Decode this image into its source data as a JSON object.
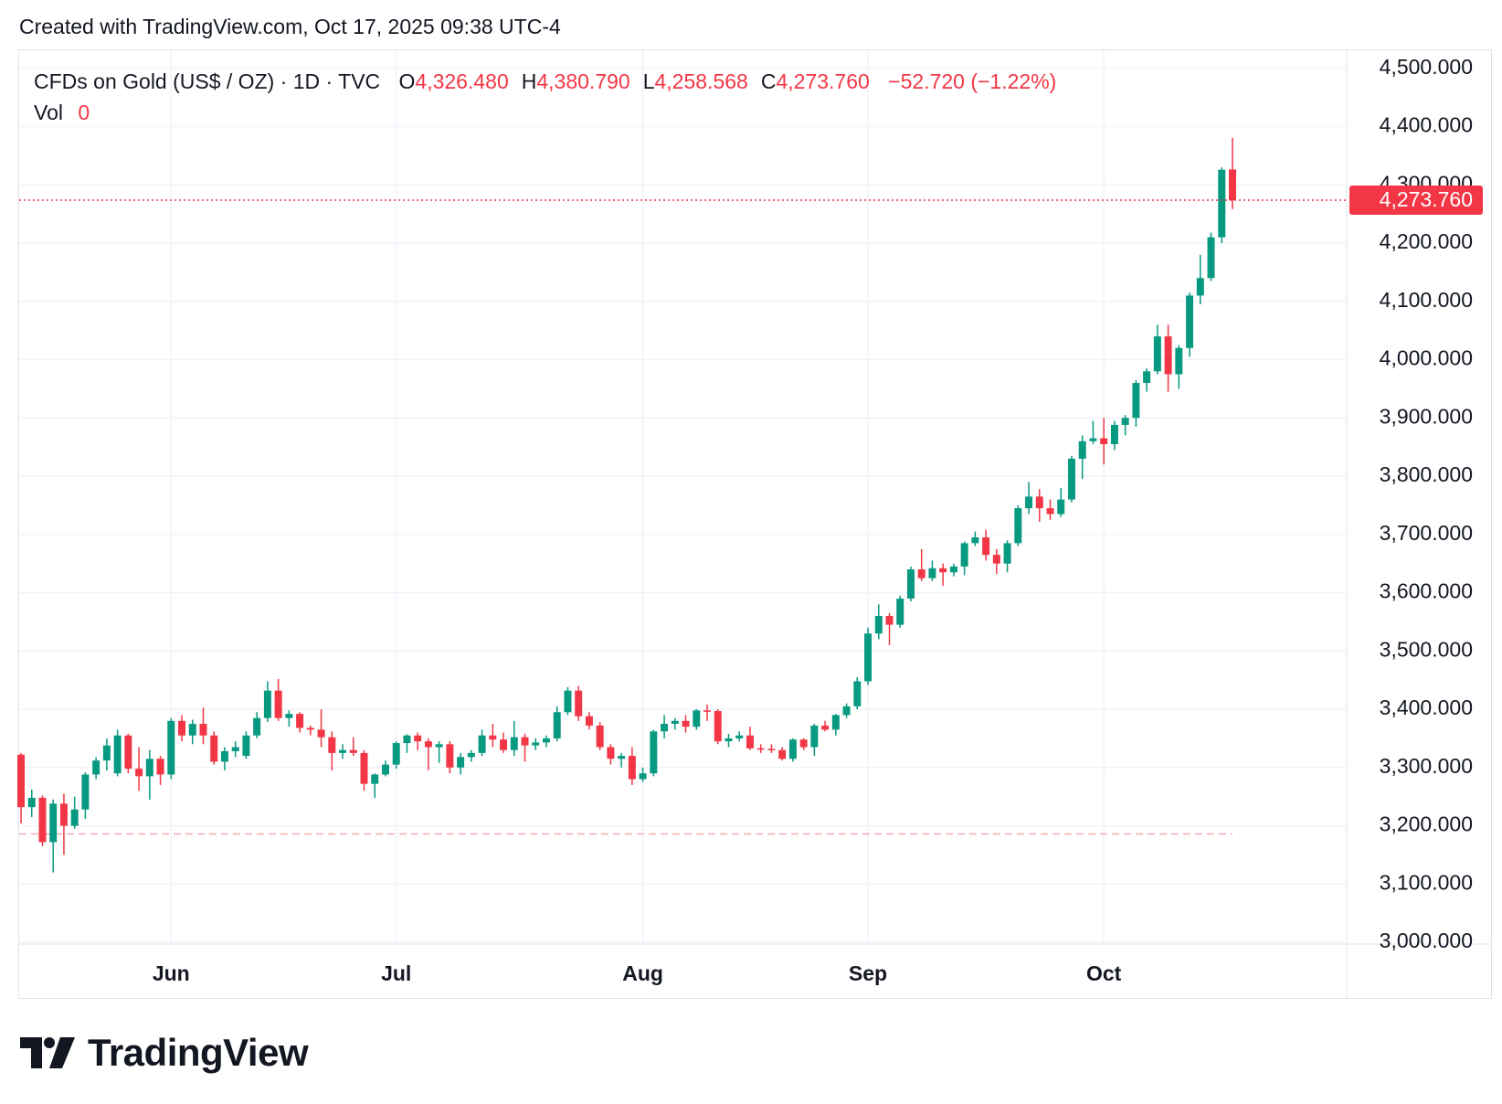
{
  "header": {
    "created": "Created with TradingView.com, Oct 17, 2025 09:38 UTC-4"
  },
  "footer": {
    "logo_text": "TradingView"
  },
  "chart_data": {
    "type": "candlestick",
    "symbol": "CFDs on Gold (US$ / OZ) · 1D · TVC",
    "ohlc_legend": [
      {
        "key": "O",
        "value": "4,326.480"
      },
      {
        "key": "H",
        "value": "4,380.790"
      },
      {
        "key": "L",
        "value": "4,258.568"
      },
      {
        "key": "C",
        "value": "4,273.760"
      }
    ],
    "change": "−52.720 (−1.22%)",
    "volume": {
      "key": "Vol",
      "value": "0"
    },
    "categories": [
      null,
      null,
      null,
      null,
      null,
      null,
      null,
      null,
      null,
      null,
      null,
      null,
      null,
      null,
      "Jun",
      null,
      null,
      null,
      null,
      null,
      null,
      null,
      null,
      null,
      null,
      null,
      null,
      null,
      null,
      null,
      null,
      null,
      null,
      null,
      null,
      "Jul",
      null,
      null,
      null,
      null,
      null,
      null,
      null,
      null,
      null,
      null,
      null,
      null,
      null,
      null,
      null,
      null,
      null,
      null,
      null,
      null,
      null,
      null,
      "Aug",
      null,
      null,
      null,
      null,
      null,
      null,
      null,
      null,
      null,
      null,
      null,
      null,
      null,
      null,
      null,
      null,
      null,
      null,
      null,
      null,
      "Sep",
      null,
      null,
      null,
      null,
      null,
      null,
      null,
      null,
      null,
      null,
      null,
      null,
      null,
      null,
      null,
      null,
      null,
      null,
      null,
      null,
      null,
      "Oct",
      null,
      null,
      null,
      null,
      null,
      null,
      null,
      null,
      null,
      null,
      null,
      null
    ],
    "open": [
      3322,
      3232,
      3248,
      3172,
      3238,
      3200,
      3228,
      3288,
      3312,
      3290,
      3355,
      3298,
      3285,
      3315,
      3288,
      3380,
      3355,
      3375,
      3355,
      3310,
      3328,
      3320,
      3355,
      3385,
      3432,
      3385,
      3392,
      3368,
      3365,
      3352,
      3325,
      3330,
      3325,
      3272,
      3288,
      3305,
      3342,
      3355,
      3345,
      3335,
      3340,
      3300,
      3318,
      3325,
      3355,
      3348,
      3330,
      3352,
      3338,
      3343,
      3350,
      3395,
      3432,
      3388,
      3372,
      3335,
      3315,
      3320,
      3280,
      3290,
      3362,
      3375,
      3380,
      3370,
      3398,
      3397,
      3345,
      3350,
      3355,
      3333,
      3332,
      3330,
      3315,
      3348,
      3335,
      3372,
      3365,
      3390,
      3405,
      3448,
      3530,
      3560,
      3545,
      3590,
      3640,
      3625,
      3642,
      3635,
      3645,
      3685,
      3695,
      3665,
      3650,
      3685,
      3745,
      3765,
      3745,
      3735,
      3760,
      3830,
      3860,
      3865,
      3855,
      3888,
      3900,
      3960,
      3980,
      4040,
      3975,
      4020,
      4110,
      4140,
      4210,
      4326.48
    ],
    "high": [
      3325,
      3262,
      3252,
      3245,
      3255,
      3250,
      3292,
      3318,
      3350,
      3365,
      3358,
      3335,
      3330,
      3320,
      3385,
      3390,
      3382,
      3403,
      3362,
      3335,
      3345,
      3362,
      3395,
      3448,
      3452,
      3398,
      3395,
      3372,
      3400,
      3362,
      3340,
      3352,
      3330,
      3290,
      3312,
      3345,
      3357,
      3360,
      3350,
      3345,
      3345,
      3325,
      3330,
      3365,
      3375,
      3360,
      3380,
      3358,
      3350,
      3355,
      3405,
      3438,
      3440,
      3395,
      3378,
      3340,
      3325,
      3335,
      3300,
      3365,
      3390,
      3385,
      3390,
      3400,
      3408,
      3400,
      3358,
      3362,
      3370,
      3340,
      3340,
      3335,
      3350,
      3350,
      3375,
      3380,
      3392,
      3410,
      3455,
      3540,
      3580,
      3565,
      3595,
      3645,
      3675,
      3655,
      3650,
      3650,
      3688,
      3705,
      3708,
      3675,
      3690,
      3750,
      3790,
      3778,
      3760,
      3780,
      3835,
      3870,
      3895,
      3900,
      3895,
      3905,
      3965,
      3985,
      4060,
      4060,
      4025,
      4115,
      4180,
      4218,
      4330,
      4380.79
    ],
    "low": [
      3204,
      3215,
      3165,
      3120,
      3150,
      3195,
      3212,
      3280,
      3295,
      3285,
      3290,
      3260,
      3245,
      3270,
      3280,
      3345,
      3340,
      3340,
      3305,
      3295,
      3318,
      3315,
      3350,
      3378,
      3380,
      3370,
      3360,
      3355,
      3335,
      3295,
      3315,
      3320,
      3260,
      3248,
      3285,
      3298,
      3325,
      3330,
      3295,
      3308,
      3290,
      3288,
      3310,
      3320,
      3335,
      3325,
      3320,
      3310,
      3330,
      3335,
      3345,
      3390,
      3380,
      3365,
      3330,
      3305,
      3300,
      3270,
      3275,
      3285,
      3350,
      3365,
      3360,
      3365,
      3380,
      3340,
      3335,
      3345,
      3330,
      3325,
      3325,
      3312,
      3310,
      3330,
      3320,
      3362,
      3355,
      3385,
      3400,
      3442,
      3520,
      3510,
      3540,
      3585,
      3620,
      3620,
      3612,
      3628,
      3630,
      3680,
      3655,
      3632,
      3635,
      3680,
      3735,
      3722,
      3725,
      3730,
      3755,
      3795,
      3855,
      3820,
      3845,
      3870,
      3885,
      3945,
      3975,
      3945,
      3950,
      4005,
      4095,
      4135,
      4200,
      4258.568
    ],
    "close": [
      3232,
      3248,
      3172,
      3238,
      3200,
      3228,
      3288,
      3312,
      3338,
      3355,
      3298,
      3285,
      3315,
      3288,
      3380,
      3355,
      3375,
      3355,
      3310,
      3328,
      3335,
      3355,
      3385,
      3432,
      3385,
      3392,
      3368,
      3365,
      3352,
      3325,
      3330,
      3325,
      3272,
      3288,
      3305,
      3342,
      3355,
      3345,
      3335,
      3340,
      3300,
      3318,
      3325,
      3355,
      3348,
      3330,
      3352,
      3338,
      3343,
      3350,
      3395,
      3432,
      3388,
      3372,
      3335,
      3315,
      3320,
      3280,
      3290,
      3362,
      3375,
      3380,
      3370,
      3398,
      3397,
      3345,
      3350,
      3355,
      3333,
      3332,
      3330,
      3315,
      3348,
      3335,
      3372,
      3365,
      3390,
      3405,
      3448,
      3530,
      3560,
      3545,
      3590,
      3640,
      3625,
      3642,
      3635,
      3645,
      3685,
      3695,
      3665,
      3650,
      3685,
      3745,
      3765,
      3745,
      3735,
      3760,
      3830,
      3860,
      3865,
      3855,
      3888,
      3900,
      3960,
      3980,
      4040,
      3975,
      4020,
      4110,
      4140,
      4210,
      4326,
      4273.76
    ],
    "up_color": "#089981",
    "down_color": "#f23645",
    "ylim": [
      2997,
      4531
    ],
    "yticks": [
      {
        "value": 3000,
        "label": "3,000.000"
      },
      {
        "value": 3100,
        "label": "3,100.000"
      },
      {
        "value": 3200,
        "label": "3,200.000"
      },
      {
        "value": 3300,
        "label": "3,300.000"
      },
      {
        "value": 3400,
        "label": "3,400.000"
      },
      {
        "value": 3500,
        "label": "3,500.000"
      },
      {
        "value": 3600,
        "label": "3,600.000"
      },
      {
        "value": 3700,
        "label": "3,700.000"
      },
      {
        "value": 3800,
        "label": "3,800.000"
      },
      {
        "value": 3900,
        "label": "3,900.000"
      },
      {
        "value": 4000,
        "label": "4,000.000"
      },
      {
        "value": 4100,
        "label": "4,100.000"
      },
      {
        "value": 4200,
        "label": "4,200.000"
      },
      {
        "value": 4300,
        "label": "4,300.000"
      },
      {
        "value": 4400,
        "label": "4,400.000"
      },
      {
        "value": 4500,
        "label": "4,500.000"
      }
    ],
    "last_price": {
      "value": 4273.76,
      "label": "4,273.760"
    },
    "reference_line": 3186,
    "grid": true
  }
}
